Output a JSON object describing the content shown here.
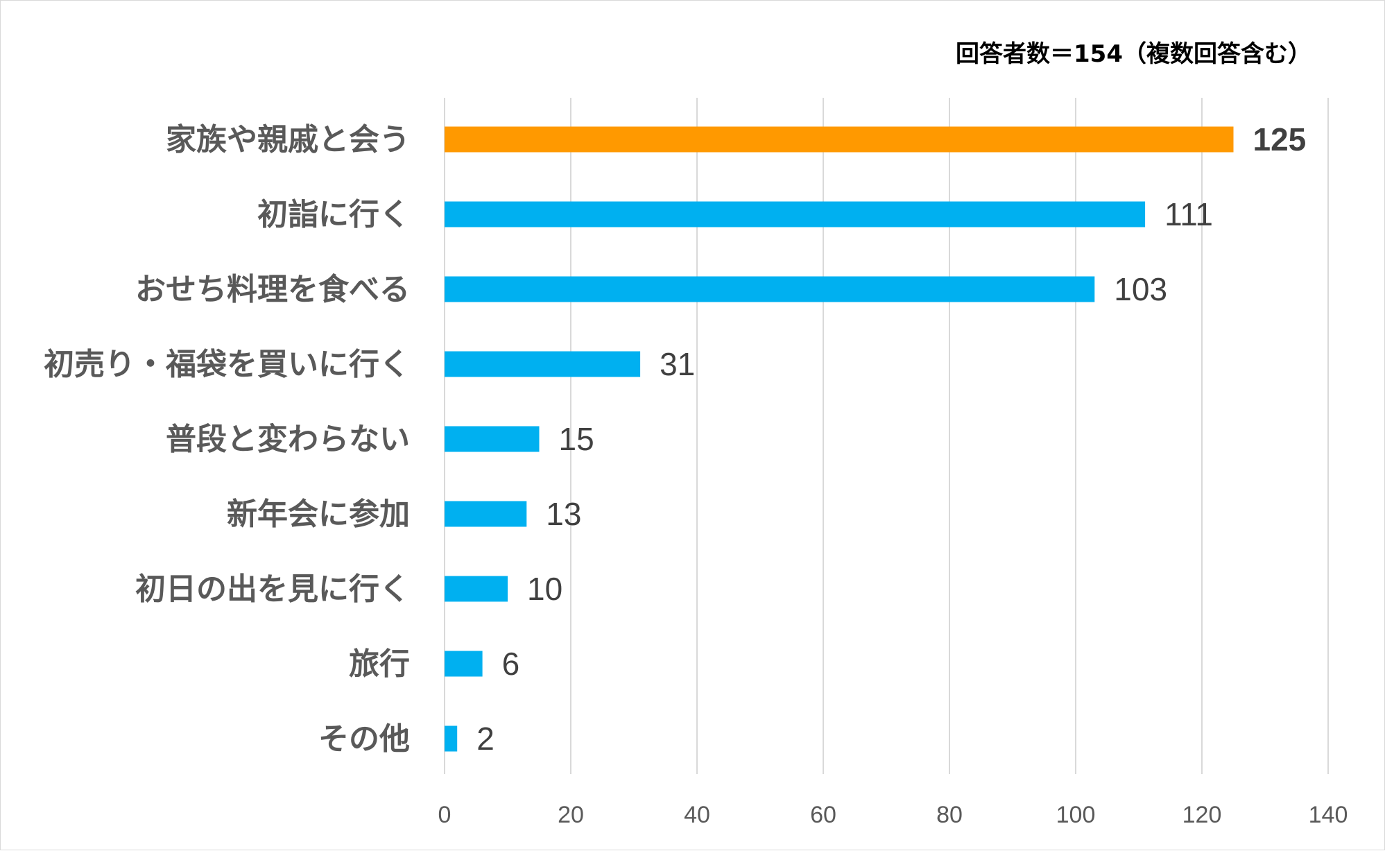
{
  "chart_data": {
    "type": "bar",
    "orientation": "horizontal",
    "note": "回答者数＝154（複数回答含む）",
    "categories": [
      "家族や親戚と会う",
      "初詣に行く",
      "おせち料理を食べる",
      "初売り・福袋を買いに行く",
      "普段と変わらない",
      "新年会に参加",
      "初日の出を見に行く",
      "旅行",
      "その他"
    ],
    "values": [
      125,
      111,
      103,
      31,
      15,
      13,
      10,
      6,
      2
    ],
    "highlight_index": 0,
    "xlim": [
      0,
      140
    ],
    "xticks": [
      0,
      20,
      40,
      60,
      80,
      100,
      120,
      140
    ],
    "grid": "vertical",
    "legend": "none",
    "colors": {
      "bar": "#00b0f0",
      "highlight": "#ff9900",
      "grid": "#d9d9d9"
    }
  }
}
